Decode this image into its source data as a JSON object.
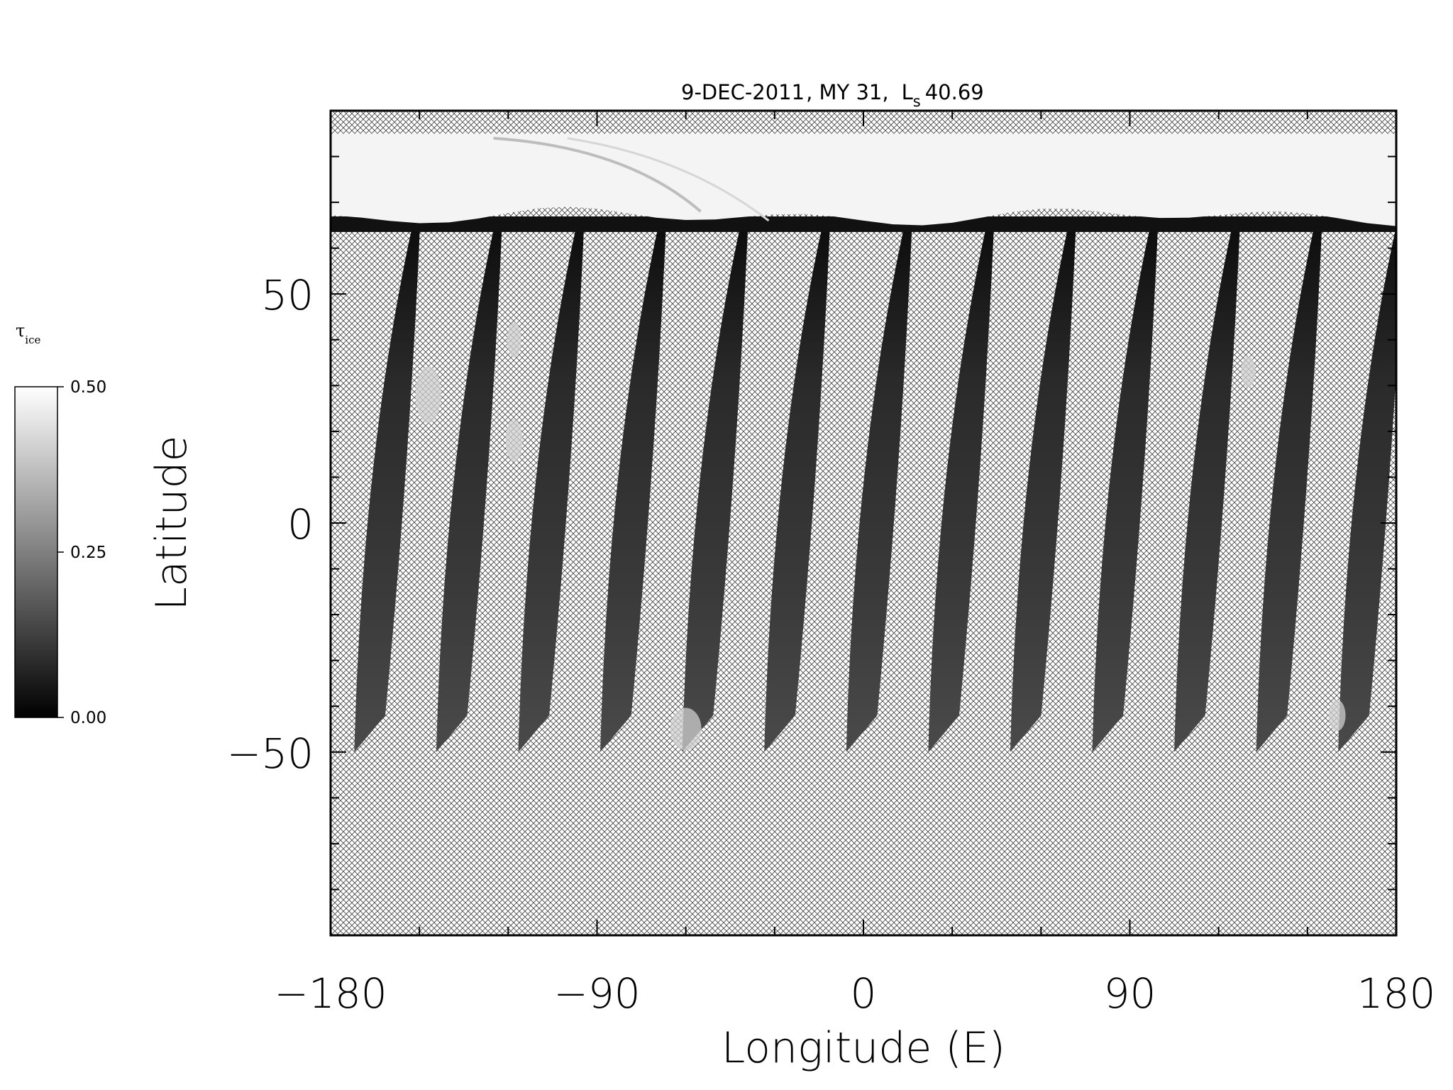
{
  "chart_data": {
    "type": "heatmap",
    "title": {
      "date": "9-DEC-2011",
      "mars_year": "MY 31,",
      "ls_symbol": "L",
      "ls_subscript": "s",
      "ls_value": "40.69"
    },
    "xlabel": "Longitude (E)",
    "ylabel": "Latitude",
    "xlim": [
      -180,
      180
    ],
    "ylim": [
      -90,
      90
    ],
    "x_ticks": [
      -180,
      -90,
      0,
      90,
      180
    ],
    "x_tick_labels": [
      "−180",
      "−90",
      "0",
      "90",
      "180"
    ],
    "y_ticks": [
      -50,
      0,
      50
    ],
    "y_tick_labels": [
      "−50",
      "0",
      "50"
    ],
    "x_minor_step": 30,
    "y_minor_step": 10,
    "missing_data_pattern": "crosshatch",
    "north_cap_boundary_lat": 66,
    "north_bright_lat": 85,
    "swaths": {
      "count": 13,
      "spacing_deg": 27.7,
      "first_lon_at_lat_-45": -172,
      "width_deg": 19,
      "northward_shift_deg": 20,
      "south_edge_lats": [
        -50,
        -42
      ]
    },
    "colorbar": {
      "label_symbol": "τ",
      "label_subscript": "ice",
      "min": 0.0,
      "max": 0.5,
      "ticks": [
        0.0,
        0.25,
        0.5
      ],
      "tick_labels": [
        "0.00",
        "0.25",
        "0.50"
      ],
      "colormap": "grayscale",
      "color_min": "#000000",
      "color_max": "#ffffff"
    }
  }
}
